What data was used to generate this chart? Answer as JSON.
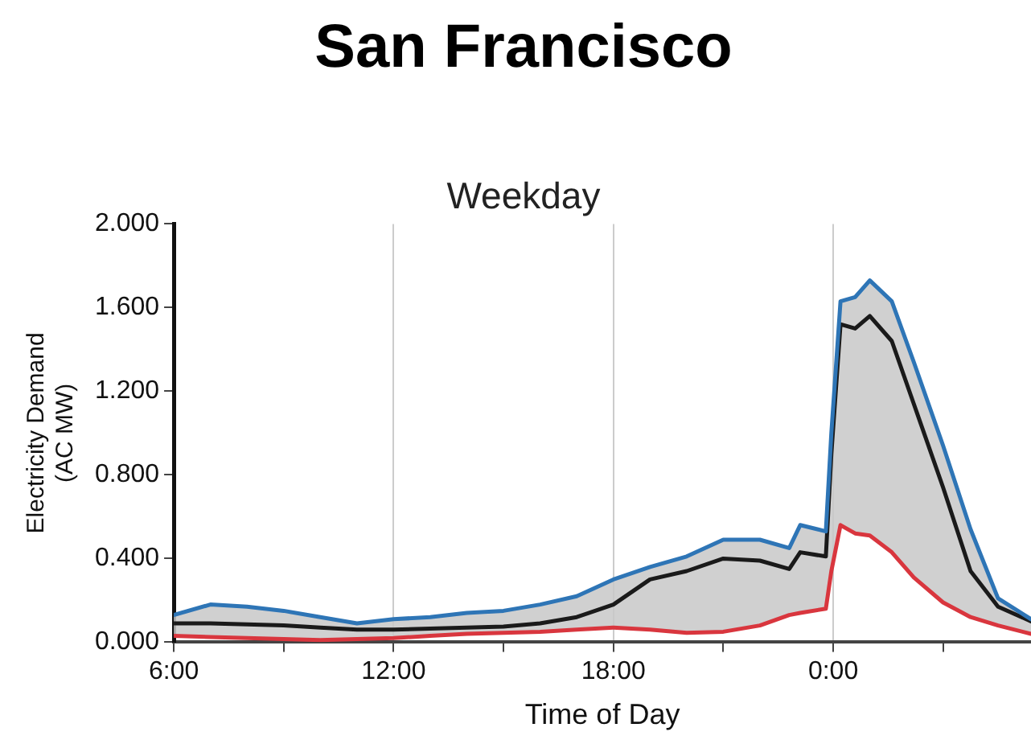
{
  "chart_data": {
    "type": "line",
    "title": "San Francisco",
    "subtitle": "Weekday",
    "xlabel": "Time of Day",
    "ylabel": "Electricity Demand\n(AC MW)",
    "x": [
      6,
      7,
      8,
      9,
      10,
      11,
      12,
      13,
      14,
      15,
      16,
      17,
      18,
      19,
      20,
      21,
      22,
      22.8,
      23.1,
      23.8,
      23.95,
      24.2,
      24.6,
      25,
      25.6,
      26.2,
      27,
      27.75,
      28.5,
      29.4
    ],
    "xlim": [
      6,
      29.4
    ],
    "xticks": [
      {
        "value": 6,
        "label": "6:00"
      },
      {
        "value": 9,
        "label": null
      },
      {
        "value": 12,
        "label": "12:00"
      },
      {
        "value": 15,
        "label": null
      },
      {
        "value": 18,
        "label": "18:00"
      },
      {
        "value": 21,
        "label": null
      },
      {
        "value": 24,
        "label": "0:00"
      },
      {
        "value": 27,
        "label": null
      }
    ],
    "ylim": [
      0,
      2
    ],
    "yticks": [
      {
        "value": 0,
        "label": "0.000"
      },
      {
        "value": 0.4,
        "label": "0.400"
      },
      {
        "value": 0.8,
        "label": "0.800"
      },
      {
        "value": 1.2,
        "label": "1.200"
      },
      {
        "value": 1.6,
        "label": "1.600"
      },
      {
        "value": 2,
        "label": "2.000"
      }
    ],
    "grid": "x",
    "legend": false,
    "marker": "none",
    "line_style": "solid",
    "series": [
      {
        "color": "#2e75b6",
        "values": [
          0.13,
          0.18,
          0.17,
          0.15,
          0.12,
          0.09,
          0.11,
          0.12,
          0.14,
          0.15,
          0.18,
          0.22,
          0.3,
          0.36,
          0.41,
          0.49,
          0.49,
          0.45,
          0.56,
          0.53,
          1.0,
          1.63,
          1.65,
          1.73,
          1.63,
          1.34,
          0.94,
          0.54,
          0.21,
          0.11
        ]
      },
      {
        "color": "#1a1a1a",
        "values": [
          0.09,
          0.09,
          0.085,
          0.08,
          0.07,
          0.06,
          0.06,
          0.065,
          0.07,
          0.075,
          0.09,
          0.12,
          0.18,
          0.3,
          0.34,
          0.4,
          0.39,
          0.35,
          0.43,
          0.41,
          0.9,
          1.52,
          1.5,
          1.56,
          1.44,
          1.14,
          0.74,
          0.34,
          0.17,
          0.1
        ],
        "lower": [
          0.03,
          0.025,
          0.02,
          0.015,
          0.01,
          0.015,
          0.02,
          0.03,
          0.04,
          0.045,
          0.05,
          0.06,
          0.07,
          0.06,
          0.045,
          0.05,
          0.08,
          0.13,
          0.14,
          0.16,
          0.34,
          0.56,
          0.52,
          0.51,
          0.43,
          0.31,
          0.19,
          0.12,
          0.08,
          0.04
        ],
        "upper": [
          0.13,
          0.18,
          0.17,
          0.15,
          0.12,
          0.09,
          0.11,
          0.12,
          0.14,
          0.15,
          0.18,
          0.22,
          0.3,
          0.36,
          0.41,
          0.49,
          0.49,
          0.45,
          0.56,
          0.53,
          1.0,
          1.63,
          1.65,
          1.73,
          1.63,
          1.34,
          0.94,
          0.54,
          0.21,
          0.11
        ]
      },
      {
        "color": "#d9363e",
        "values": [
          0.03,
          0.025,
          0.02,
          0.015,
          0.01,
          0.015,
          0.02,
          0.03,
          0.04,
          0.045,
          0.05,
          0.06,
          0.07,
          0.06,
          0.045,
          0.05,
          0.08,
          0.13,
          0.14,
          0.16,
          0.34,
          0.56,
          0.52,
          0.51,
          0.43,
          0.31,
          0.19,
          0.12,
          0.08,
          0.04
        ]
      }
    ]
  }
}
